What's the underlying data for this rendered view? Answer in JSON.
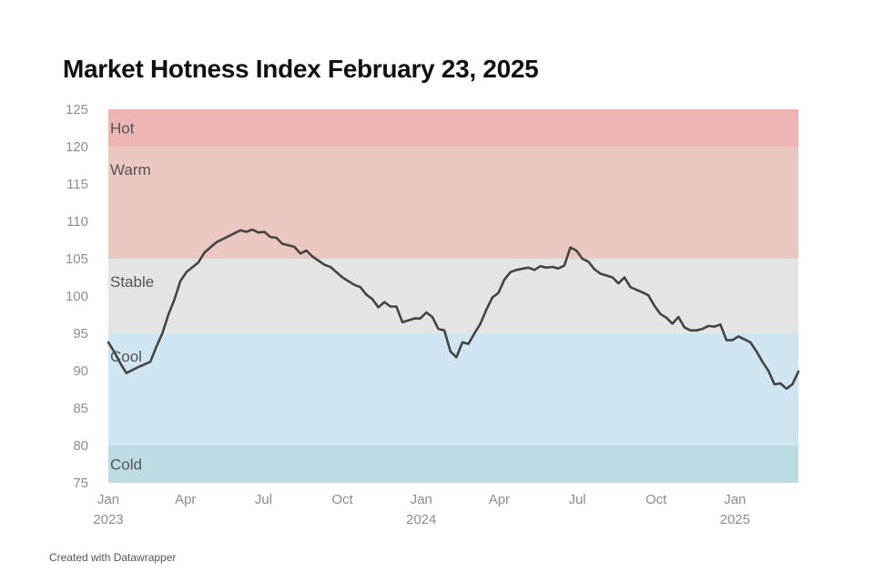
{
  "title": "Market Hotness Index February 23, 2025",
  "credit": "Created with Datawrapper",
  "chart_data": {
    "type": "line",
    "title": "Market Hotness Index February 23, 2025",
    "xlabel": "",
    "ylabel": "",
    "ylim": [
      75,
      125
    ],
    "yticks": [
      75,
      80,
      85,
      90,
      95,
      100,
      105,
      110,
      115,
      120,
      125
    ],
    "xlim": [
      "2023-01-01",
      "2025-02-23"
    ],
    "xticks": [
      {
        "date": "2023-01-01",
        "label": "Jan",
        "sublabel": "2023"
      },
      {
        "date": "2023-04-01",
        "label": "Apr",
        "sublabel": ""
      },
      {
        "date": "2023-07-01",
        "label": "Jul",
        "sublabel": ""
      },
      {
        "date": "2023-10-01",
        "label": "Oct",
        "sublabel": ""
      },
      {
        "date": "2024-01-01",
        "label": "Jan",
        "sublabel": "2024"
      },
      {
        "date": "2024-04-01",
        "label": "Apr",
        "sublabel": ""
      },
      {
        "date": "2024-07-01",
        "label": "Jul",
        "sublabel": ""
      },
      {
        "date": "2024-10-01",
        "label": "Oct",
        "sublabel": ""
      },
      {
        "date": "2025-01-01",
        "label": "Jan",
        "sublabel": "2025"
      }
    ],
    "grid": false,
    "bands": [
      {
        "label": "Hot",
        "from": 120,
        "to": 125,
        "color": "#edb5b4"
      },
      {
        "label": "Warm",
        "from": 105,
        "to": 120,
        "color": "#eac7c1"
      },
      {
        "label": "Stable",
        "from": 95,
        "to": 105,
        "color": "#e4e4e4"
      },
      {
        "label": "Cool",
        "from": 80,
        "to": 95,
        "color": "#d0e5f2"
      },
      {
        "label": "Cold",
        "from": 75,
        "to": 80,
        "color": "#bcdbe2"
      }
    ],
    "series": [
      {
        "color": "#444444",
        "points": [
          [
            "2023-01-01",
            93.8
          ],
          [
            "2023-01-08",
            92.5
          ],
          [
            "2023-01-15",
            91.0
          ],
          [
            "2023-01-22",
            89.7
          ],
          [
            "2023-02-05",
            90.5
          ],
          [
            "2023-02-19",
            91.2
          ],
          [
            "2023-02-26",
            93.2
          ],
          [
            "2023-03-05",
            95.0
          ],
          [
            "2023-03-12",
            97.5
          ],
          [
            "2023-03-19",
            99.5
          ],
          [
            "2023-03-26",
            102.0
          ],
          [
            "2023-04-02",
            103.2
          ],
          [
            "2023-04-16",
            104.5
          ],
          [
            "2023-04-23",
            105.8
          ],
          [
            "2023-05-07",
            107.2
          ],
          [
            "2023-05-21",
            108.0
          ],
          [
            "2023-06-04",
            108.8
          ],
          [
            "2023-06-11",
            108.6
          ],
          [
            "2023-06-18",
            108.9
          ],
          [
            "2023-06-25",
            108.5
          ],
          [
            "2023-07-02",
            108.6
          ],
          [
            "2023-07-09",
            107.9
          ],
          [
            "2023-07-16",
            107.8
          ],
          [
            "2023-07-23",
            107.0
          ],
          [
            "2023-08-06",
            106.6
          ],
          [
            "2023-08-13",
            105.7
          ],
          [
            "2023-08-20",
            106.1
          ],
          [
            "2023-08-27",
            105.3
          ],
          [
            "2023-09-10",
            104.2
          ],
          [
            "2023-09-17",
            103.9
          ],
          [
            "2023-10-01",
            102.5
          ],
          [
            "2023-10-15",
            101.5
          ],
          [
            "2023-10-22",
            101.2
          ],
          [
            "2023-10-29",
            100.2
          ],
          [
            "2023-11-05",
            99.6
          ],
          [
            "2023-11-12",
            98.5
          ],
          [
            "2023-11-19",
            99.2
          ],
          [
            "2023-11-26",
            98.6
          ],
          [
            "2023-12-03",
            98.6
          ],
          [
            "2023-12-10",
            96.5
          ],
          [
            "2023-12-24",
            97.0
          ],
          [
            "2023-12-31",
            97.0
          ],
          [
            "2024-01-07",
            97.8
          ],
          [
            "2024-01-14",
            97.2
          ],
          [
            "2024-01-21",
            95.6
          ],
          [
            "2024-01-28",
            95.4
          ],
          [
            "2024-02-04",
            92.6
          ],
          [
            "2024-02-11",
            91.8
          ],
          [
            "2024-02-18",
            93.8
          ],
          [
            "2024-02-25",
            93.6
          ],
          [
            "2024-03-03",
            95.0
          ],
          [
            "2024-03-10",
            96.3
          ],
          [
            "2024-03-17",
            98.2
          ],
          [
            "2024-03-24",
            99.8
          ],
          [
            "2024-03-31",
            100.4
          ],
          [
            "2024-04-07",
            102.2
          ],
          [
            "2024-04-14",
            103.2
          ],
          [
            "2024-04-21",
            103.5
          ],
          [
            "2024-05-05",
            103.8
          ],
          [
            "2024-05-12",
            103.5
          ],
          [
            "2024-05-19",
            104.0
          ],
          [
            "2024-05-26",
            103.8
          ],
          [
            "2024-06-02",
            103.9
          ],
          [
            "2024-06-09",
            103.7
          ],
          [
            "2024-06-16",
            104.1
          ],
          [
            "2024-06-23",
            106.5
          ],
          [
            "2024-06-30",
            106.1
          ],
          [
            "2024-07-07",
            105.0
          ],
          [
            "2024-07-14",
            104.6
          ],
          [
            "2024-07-21",
            103.6
          ],
          [
            "2024-07-28",
            103.0
          ],
          [
            "2024-08-11",
            102.5
          ],
          [
            "2024-08-18",
            101.7
          ],
          [
            "2024-08-25",
            102.5
          ],
          [
            "2024-09-01",
            101.2
          ],
          [
            "2024-09-15",
            100.5
          ],
          [
            "2024-09-22",
            100.1
          ],
          [
            "2024-09-29",
            98.7
          ],
          [
            "2024-10-06",
            97.6
          ],
          [
            "2024-10-13",
            97.1
          ],
          [
            "2024-10-20",
            96.3
          ],
          [
            "2024-10-27",
            97.2
          ],
          [
            "2024-11-03",
            95.8
          ],
          [
            "2024-11-10",
            95.4
          ],
          [
            "2024-11-17",
            95.4
          ],
          [
            "2024-11-24",
            95.6
          ],
          [
            "2024-12-01",
            96.0
          ],
          [
            "2024-12-08",
            95.9
          ],
          [
            "2024-12-15",
            96.2
          ],
          [
            "2024-12-22",
            94.1
          ],
          [
            "2024-12-29",
            94.1
          ],
          [
            "2025-01-05",
            94.6
          ],
          [
            "2025-01-12",
            94.2
          ],
          [
            "2025-01-19",
            93.8
          ],
          [
            "2025-01-26",
            92.6
          ],
          [
            "2025-02-02",
            91.2
          ],
          [
            "2025-02-09",
            90.0
          ],
          [
            "2025-02-16",
            88.2
          ],
          [
            "2025-02-23",
            88.3
          ],
          [
            "2025-03-02",
            87.6
          ],
          [
            "2025-03-09",
            88.2
          ],
          [
            "2025-03-16",
            89.9
          ]
        ]
      }
    ]
  }
}
